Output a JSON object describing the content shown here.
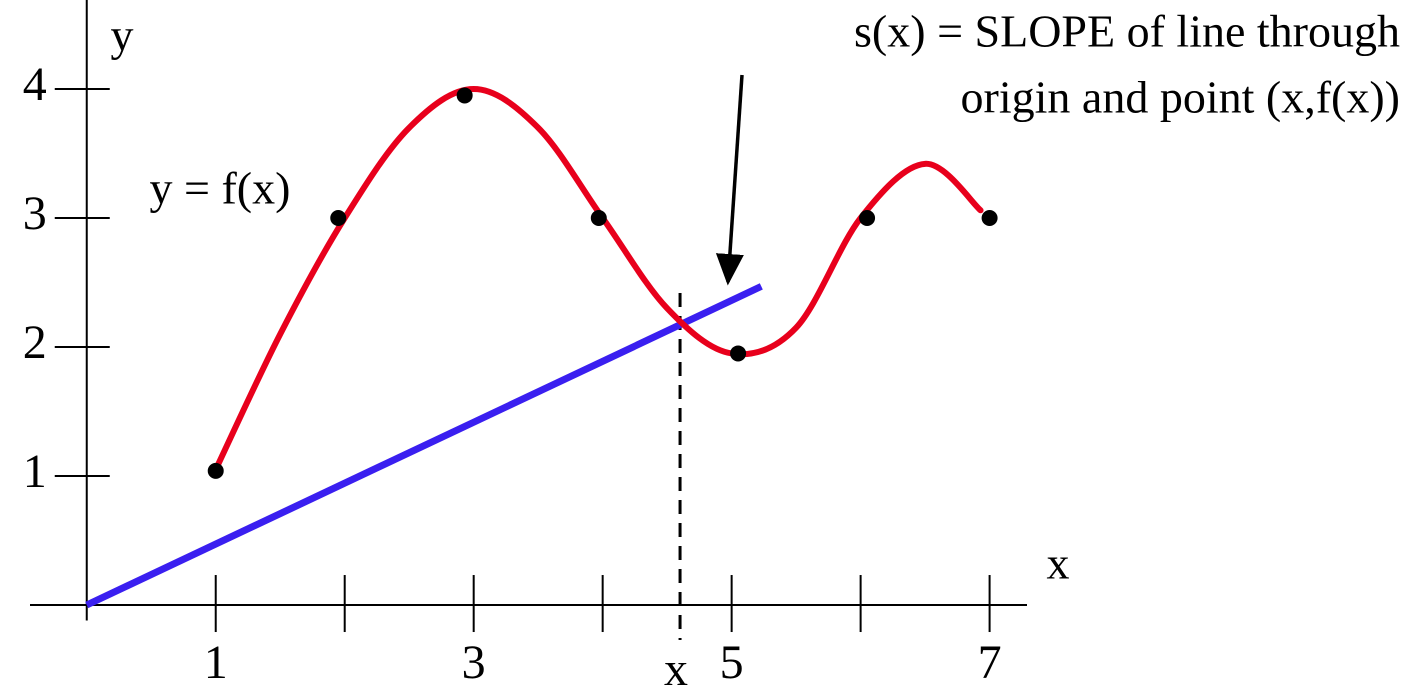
{
  "chart_data": {
    "type": "line",
    "x_label": "x",
    "y_label": "y",
    "xlim": [
      -0.44,
      7.29
    ],
    "ylim": [
      -0.12,
      4.69
    ],
    "xticks": [
      1,
      3,
      5,
      7
    ],
    "minor_xticks": [
      2,
      4,
      6
    ],
    "yticks": [
      1,
      2,
      3,
      4
    ],
    "annotation": [
      "s(x) = SLOPE of line through",
      "origin and point  (x,f(x))"
    ],
    "marker": {
      "x": 4.6,
      "label": "x"
    },
    "series": [
      {
        "kind": "curve",
        "name": "y = f(x)",
        "color": "#e8001c",
        "x": [
          1,
          1.5,
          2,
          2.5,
          3,
          3.5,
          4,
          4.5,
          5,
          5.5,
          6,
          6.5,
          6.93
        ],
        "values": [
          1.05,
          2.1,
          3,
          3.7,
          4.0,
          3.7,
          3.0,
          2.3,
          1.95,
          2.15,
          3.0,
          3.42,
          3.06
        ]
      },
      {
        "kind": "points",
        "color": "#000000",
        "x": [
          1,
          1.95,
          2.93,
          3.97,
          5.05,
          6.05,
          7
        ],
        "values": [
          1.04,
          3,
          3.95,
          3,
          1.95,
          3,
          3
        ]
      },
      {
        "kind": "segment",
        "color": "#3a1ff0",
        "x": [
          0,
          5.23
        ],
        "values": [
          0,
          2.47
        ]
      }
    ]
  }
}
